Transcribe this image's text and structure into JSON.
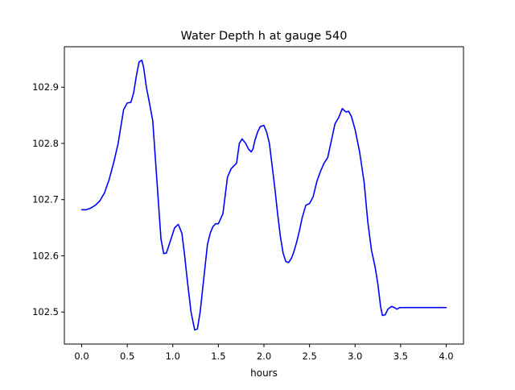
{
  "chart_data": {
    "type": "line",
    "title": "Water Depth h at gauge 540",
    "xlabel": "hours",
    "ylabel": "",
    "xlim": [
      -0.19,
      4.19
    ],
    "ylim": [
      102.443,
      102.972
    ],
    "xticks": [
      0.0,
      0.5,
      1.0,
      1.5,
      2.0,
      2.5,
      3.0,
      3.5,
      4.0
    ],
    "xtick_labels": [
      "0.0",
      "0.5",
      "1.0",
      "1.5",
      "2.0",
      "2.5",
      "3.0",
      "3.5",
      "4.0"
    ],
    "yticks": [
      102.5,
      102.6,
      102.7,
      102.8,
      102.9
    ],
    "ytick_labels": [
      "102.5",
      "102.6",
      "102.7",
      "102.8",
      "102.9"
    ],
    "grid": false,
    "series": [
      {
        "color": "#0000ff",
        "x": [
          0.0,
          0.05,
          0.1,
          0.15,
          0.2,
          0.25,
          0.3,
          0.35,
          0.4,
          0.43,
          0.46,
          0.5,
          0.54,
          0.57,
          0.6,
          0.63,
          0.66,
          0.68,
          0.71,
          0.74,
          0.78,
          0.81,
          0.84,
          0.87,
          0.9,
          0.93,
          0.96,
          0.99,
          1.02,
          1.06,
          1.1,
          1.13,
          1.16,
          1.2,
          1.24,
          1.27,
          1.3,
          1.33,
          1.36,
          1.38,
          1.41,
          1.44,
          1.47,
          1.5,
          1.55,
          1.6,
          1.64,
          1.67,
          1.7,
          1.73,
          1.76,
          1.8,
          1.83,
          1.86,
          1.88,
          1.9,
          1.93,
          1.96,
          2.0,
          2.03,
          2.06,
          2.09,
          2.12,
          2.15,
          2.18,
          2.21,
          2.24,
          2.27,
          2.3,
          2.33,
          2.36,
          2.39,
          2.42,
          2.46,
          2.5,
          2.54,
          2.58,
          2.62,
          2.66,
          2.7,
          2.74,
          2.78,
          2.82,
          2.86,
          2.9,
          2.93,
          2.96,
          3.0,
          3.05,
          3.1,
          3.14,
          3.18,
          3.22,
          3.25,
          3.28,
          3.3,
          3.33,
          3.36,
          3.4,
          3.43,
          3.46,
          3.49,
          3.52,
          3.56,
          3.6,
          3.64,
          3.68,
          3.72,
          3.76,
          3.8,
          3.83,
          3.86,
          3.9,
          3.93,
          3.96,
          4.0
        ],
        "y": [
          102.682,
          102.682,
          102.685,
          102.69,
          102.698,
          102.712,
          102.735,
          102.765,
          102.8,
          102.83,
          102.86,
          102.872,
          102.873,
          102.89,
          102.92,
          102.945,
          102.948,
          102.935,
          102.9,
          102.875,
          102.84,
          102.77,
          102.7,
          102.63,
          102.604,
          102.605,
          102.62,
          102.635,
          102.65,
          102.656,
          102.64,
          102.6,
          102.555,
          102.5,
          102.468,
          102.47,
          102.5,
          102.545,
          102.59,
          102.62,
          102.64,
          102.652,
          102.657,
          102.657,
          102.675,
          102.74,
          102.755,
          102.76,
          102.765,
          102.8,
          102.808,
          102.8,
          102.79,
          102.785,
          102.79,
          102.805,
          102.82,
          102.83,
          102.832,
          102.82,
          102.8,
          102.76,
          102.72,
          102.675,
          102.635,
          102.605,
          102.59,
          102.588,
          102.595,
          102.608,
          102.625,
          102.645,
          102.668,
          102.69,
          102.693,
          102.705,
          102.732,
          102.75,
          102.765,
          102.775,
          102.805,
          102.835,
          102.846,
          102.862,
          102.856,
          102.857,
          102.848,
          102.825,
          102.785,
          102.73,
          102.66,
          102.61,
          102.58,
          102.55,
          102.51,
          102.494,
          102.495,
          102.505,
          102.51,
          102.508,
          102.505,
          102.508,
          102.508,
          102.508,
          102.508,
          102.508,
          102.508,
          102.508,
          102.508,
          102.508,
          102.508,
          102.508,
          102.508,
          102.508,
          102.508,
          102.508
        ]
      }
    ]
  }
}
